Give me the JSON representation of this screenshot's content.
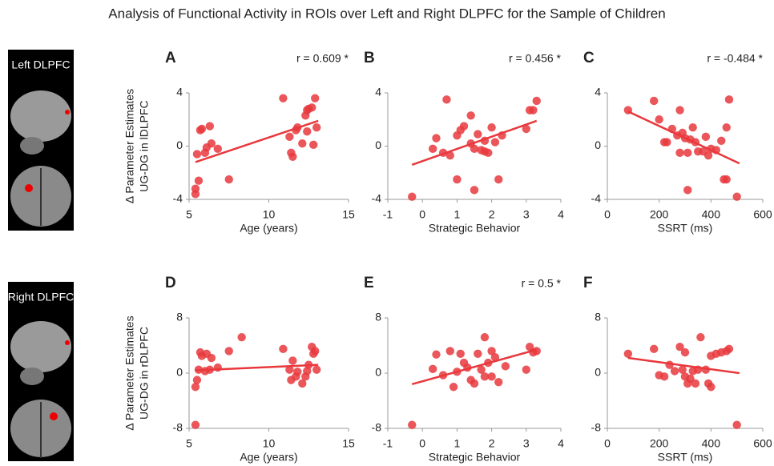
{
  "title": "Analysis of Functional Activity in ROIs over Left and Right DLPFC for the Sample of Children",
  "brain_panels": [
    {
      "label": "Left DLPFC"
    },
    {
      "label": "Right DLPFC"
    }
  ],
  "chart_data": [
    {
      "type": "scatter",
      "panel_label": "A",
      "annotation": "r = 0.609 *",
      "xlabel": "Age (years)",
      "ylabel": [
        "Δ Parameter Estimates",
        "UG-DG in lDLPFC"
      ],
      "color": "#e8383d",
      "xlim": [
        5,
        15
      ],
      "ylim": [
        -4,
        4
      ],
      "xticks": [
        5,
        10,
        15
      ],
      "yticks": [
        -4,
        0,
        4
      ],
      "x": [
        5.4,
        5.4,
        5.5,
        5.6,
        5.7,
        5.8,
        6.0,
        6.1,
        6.3,
        6.4,
        6.8,
        7.5,
        10.9,
        11.3,
        11.4,
        11.5,
        11.7,
        11.8,
        12.1,
        12.3,
        12.4,
        12.4,
        12.5,
        12.7,
        12.8,
        12.9,
        13.0
      ],
      "y": [
        -3.6,
        -3.2,
        -0.6,
        -2.6,
        1.2,
        1.3,
        -0.5,
        -0.1,
        1.5,
        0.2,
        -0.2,
        -2.5,
        3.6,
        0.7,
        -0.5,
        -0.8,
        1.2,
        1.4,
        0.2,
        2.3,
        2.7,
        1.1,
        2.8,
        2.9,
        0.1,
        3.6,
        1.4
      ],
      "fit_x": [
        5.4,
        13.1
      ],
      "fit_y": [
        -1.2,
        1.9
      ]
    },
    {
      "type": "scatter",
      "panel_label": "B",
      "annotation": "r = 0.456 *",
      "xlabel": "Strategic Behavior",
      "color": "#e8383d",
      "xlim": [
        -1,
        4
      ],
      "ylim": [
        -4,
        4
      ],
      "xticks": [
        -1,
        0,
        1,
        2,
        3,
        4
      ],
      "yticks": [
        -4,
        0,
        4
      ],
      "x": [
        -0.3,
        0.3,
        0.4,
        0.6,
        0.8,
        1.0,
        1.0,
        1.1,
        1.2,
        1.4,
        1.4,
        1.5,
        1.5,
        1.6,
        1.7,
        1.8,
        1.8,
        1.9,
        2.0,
        2.1,
        2.2,
        2.3,
        3.0,
        3.1,
        3.2,
        3.3,
        0.7
      ],
      "y": [
        -3.8,
        -0.2,
        0.6,
        -0.5,
        -0.7,
        0.8,
        -2.5,
        1.2,
        1.5,
        2.3,
        0.2,
        -0.2,
        -3.3,
        0.9,
        -0.3,
        0.4,
        -0.4,
        -0.5,
        1.4,
        0.3,
        -2.5,
        0.8,
        1.3,
        2.7,
        2.7,
        3.4,
        3.5
      ],
      "fit_x": [
        -0.3,
        3.3
      ],
      "fit_y": [
        -1.4,
        1.9
      ]
    },
    {
      "type": "scatter",
      "panel_label": "C",
      "annotation": "r = -0.484 *",
      "xlabel": "SSRT (ms)",
      "color": "#e8383d",
      "xlim": [
        0,
        600
      ],
      "ylim": [
        -4,
        4
      ],
      "xticks": [
        0,
        200,
        400,
        600
      ],
      "yticks": [
        -4,
        0,
        4
      ],
      "x": [
        80,
        180,
        200,
        220,
        230,
        250,
        270,
        280,
        280,
        290,
        300,
        310,
        310,
        320,
        330,
        340,
        350,
        370,
        380,
        390,
        400,
        420,
        440,
        450,
        460,
        470,
        500,
        460
      ],
      "y": [
        2.7,
        3.4,
        2.0,
        0.3,
        0.3,
        1.3,
        0.8,
        -0.5,
        2.7,
        1.0,
        0.6,
        -0.5,
        -3.3,
        0.5,
        1.4,
        0.3,
        -0.4,
        -0.4,
        0.7,
        -0.7,
        -0.2,
        -0.3,
        0.4,
        -2.5,
        1.4,
        3.5,
        -3.8,
        -2.5
      ],
      "fit_x": [
        80,
        510
      ],
      "fit_y": [
        2.6,
        -1.3
      ]
    },
    {
      "type": "scatter",
      "panel_label": "D",
      "xlabel": "Age (years)",
      "ylabel": [
        "Δ Parameter Estimates",
        "UG-DG in rDLPFC"
      ],
      "color": "#e8383d",
      "xlim": [
        5,
        15
      ],
      "ylim": [
        -8,
        8
      ],
      "xticks": [
        5,
        10,
        15
      ],
      "yticks": [
        -8,
        0,
        8
      ],
      "x": [
        5.4,
        5.4,
        5.5,
        5.6,
        5.7,
        5.8,
        6.0,
        6.1,
        6.3,
        6.4,
        6.8,
        7.5,
        10.9,
        11.3,
        11.4,
        11.5,
        11.7,
        11.8,
        12.1,
        12.3,
        12.4,
        12.5,
        12.7,
        12.8,
        12.9,
        13.0,
        8.3
      ],
      "y": [
        -7.5,
        -2,
        -1,
        0.5,
        3,
        2.5,
        0.3,
        2.8,
        0.5,
        2.2,
        0.8,
        3.2,
        3.5,
        0.5,
        -1,
        1.8,
        -0.5,
        0.2,
        -1.5,
        -0.5,
        0.3,
        1.2,
        3.8,
        2.8,
        3.2,
        0.5,
        5.2
      ],
      "fit_x": [
        5.4,
        13.1
      ],
      "fit_y": [
        0.4,
        1.2
      ]
    },
    {
      "type": "scatter",
      "panel_label": "E",
      "annotation": "r = 0.5 *",
      "xlabel": "Strategic Behavior",
      "color": "#e8383d",
      "xlim": [
        -1,
        4
      ],
      "ylim": [
        -8,
        8
      ],
      "xticks": [
        -1,
        0,
        1,
        2,
        3,
        4
      ],
      "yticks": [
        -8,
        0,
        8
      ],
      "x": [
        -0.3,
        0.3,
        0.4,
        0.6,
        0.8,
        0.9,
        1.0,
        1.1,
        1.2,
        1.3,
        1.4,
        1.5,
        1.6,
        1.7,
        1.8,
        1.8,
        1.9,
        2.0,
        2.1,
        2.2,
        2.0,
        2.4,
        3.0,
        3.1,
        3.2,
        3.3
      ],
      "y": [
        -7.5,
        0.6,
        2.7,
        -0.3,
        3.2,
        -2,
        0.2,
        2.8,
        1.5,
        0.8,
        -1.0,
        -1.5,
        2.8,
        0.5,
        5.2,
        -0.5,
        1.5,
        3.2,
        2.3,
        -1.3,
        -0.5,
        1.0,
        0.5,
        3.8,
        3.0,
        3.2
      ],
      "fit_x": [
        -0.3,
        3.3
      ],
      "fit_y": [
        -1.6,
        3.4
      ]
    },
    {
      "type": "scatter",
      "panel_label": "F",
      "xlabel": "SSRT (ms)",
      "color": "#e8383d",
      "xlim": [
        0,
        600
      ],
      "ylim": [
        -8,
        8
      ],
      "xticks": [
        0,
        200,
        400,
        600
      ],
      "yticks": [
        -8,
        0,
        8
      ],
      "x": [
        80,
        180,
        200,
        220,
        240,
        260,
        280,
        290,
        300,
        310,
        320,
        330,
        340,
        350,
        360,
        380,
        390,
        400,
        400,
        420,
        440,
        460,
        470,
        500,
        300
      ],
      "y": [
        2.8,
        3.5,
        -0.3,
        -0.5,
        1.2,
        0.3,
        3.8,
        0.5,
        -0.5,
        -1.5,
        -0.8,
        0.3,
        -1.5,
        0.5,
        5.2,
        0.5,
        -1.5,
        -2,
        2.5,
        2.8,
        3,
        3.2,
        3.5,
        -7.5,
        3.0
      ],
      "fit_x": [
        80,
        510
      ],
      "fit_y": [
        2.2,
        0
      ]
    }
  ]
}
